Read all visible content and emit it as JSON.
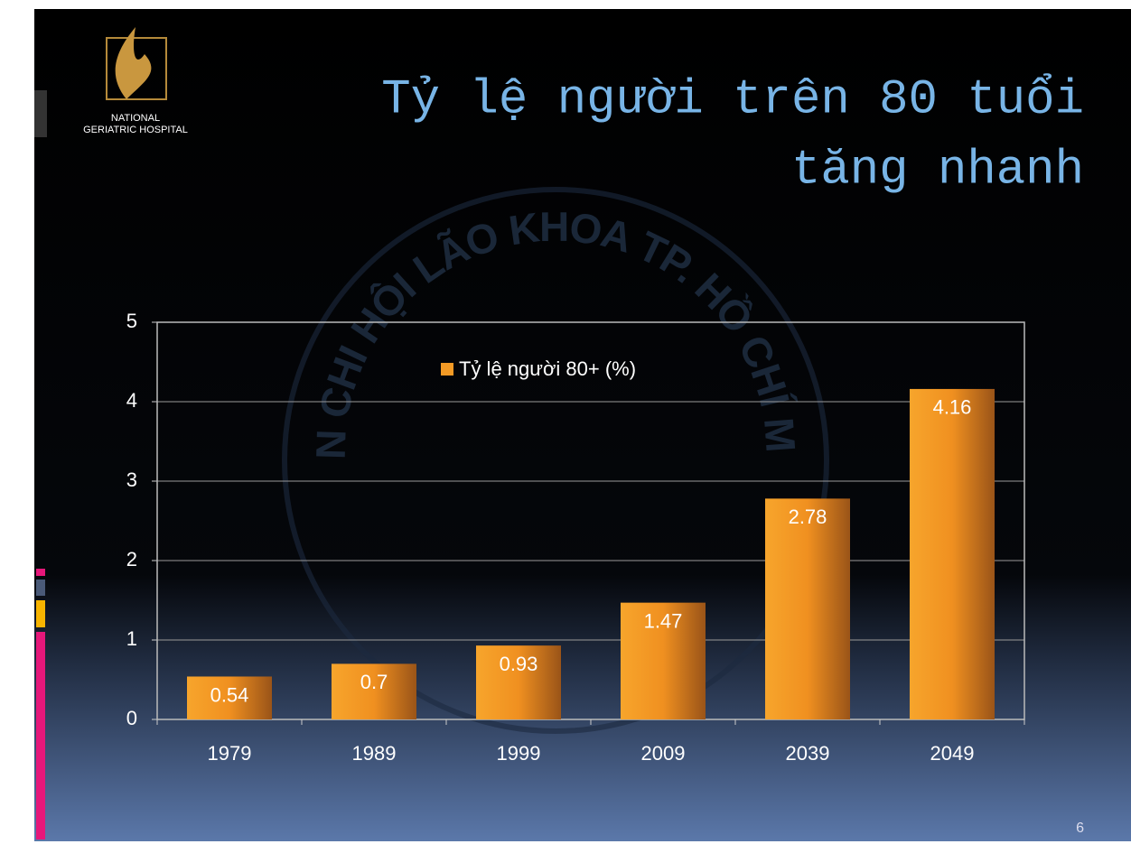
{
  "logo": {
    "line1": "NATIONAL",
    "line2": "GERIATRIC HOSPITAL"
  },
  "watermark": "LIÊN CHI HỘI LÃO KHOA TP. HỒ CHÍ MINH",
  "page_number": "6",
  "chart_data": {
    "type": "bar",
    "title_lines": [
      "Tỷ lệ người trên 80 tuổi",
      "tăng nhanh"
    ],
    "categories": [
      "1979",
      "1989",
      "1999",
      "2009",
      "2039",
      "2049"
    ],
    "series": [
      {
        "name": "Tỷ lệ người 80+ (%)",
        "color": "#f39a25",
        "values": [
          0.54,
          0.7,
          0.93,
          1.47,
          2.78,
          4.16
        ]
      }
    ],
    "ylim": [
      0,
      5
    ],
    "yticks": [
      0,
      1,
      2,
      3,
      4,
      5
    ],
    "grid": true,
    "legend": "top",
    "data_labels": true
  }
}
